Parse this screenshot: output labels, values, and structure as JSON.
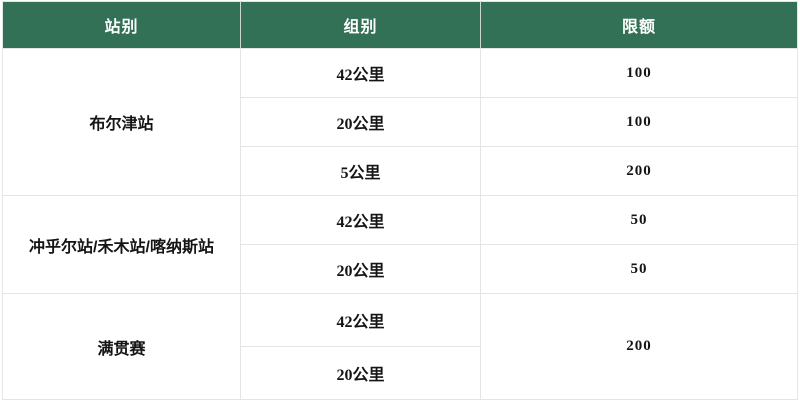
{
  "table": {
    "headers": [
      "站别",
      "组别",
      "限额"
    ],
    "groups": [
      {
        "station": "布尔津站",
        "rows": [
          {
            "group": "42公里",
            "quota": "100"
          },
          {
            "group": "20公里",
            "quota": "100"
          },
          {
            "group": "5公里",
            "quota": "200"
          }
        ]
      },
      {
        "station": "冲乎尔站/禾木站/喀纳斯站",
        "rows": [
          {
            "group": "42公里",
            "quota": "50"
          },
          {
            "group": "20公里",
            "quota": "50"
          }
        ]
      },
      {
        "station": "满贯赛",
        "rows": [
          {
            "group": "42公里"
          },
          {
            "group": "20公里"
          }
        ],
        "merged_quota": "200"
      }
    ],
    "colors": {
      "header_bg": "#337157",
      "header_text": "#FFFFFF",
      "body_text": "#151515",
      "merged_quota_bg": "#F3F3F3",
      "cell_border": "#E4E4E4"
    }
  }
}
